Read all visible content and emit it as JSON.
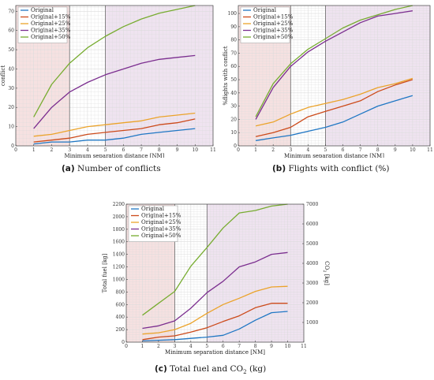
{
  "colors": {
    "Original": "#1f77c4",
    "Original+15%": "#cc4a1a",
    "Original+25%": "#eba32a",
    "Original+35%": "#7b2e8f",
    "Original+50%": "#77ac30",
    "red_zone": "#f6e1e1",
    "white_zone": "#ffffff",
    "purple_zone": "#efe3f0",
    "grid": "#dcdcdc",
    "frame": "#444444"
  },
  "captions": {
    "a_label": "(a)",
    "a_text": "Number of conflicts",
    "b_label": "(b)",
    "b_text": "Flights with conflict (%)",
    "c_label": "(c)",
    "c_text_pre": "Total fuel and CO",
    "c_text_sub": "2",
    "c_text_post": " (kg)"
  },
  "chart_data": [
    {
      "id": "a",
      "type": "line",
      "xlabel": "Minimum separation distance [NM]",
      "ylabel": "conflict",
      "xlim": [
        0,
        11
      ],
      "ylim": [
        0,
        73
      ],
      "xticks": [
        0,
        1,
        2,
        3,
        4,
        5,
        6,
        7,
        8,
        9,
        10,
        11
      ],
      "yticks": [
        0,
        10,
        20,
        30,
        40,
        50,
        60,
        70
      ],
      "bands": [
        [
          0,
          3,
          "red_zone"
        ],
        [
          3,
          5,
          "white_zone"
        ],
        [
          5,
          11,
          "purple_zone"
        ]
      ],
      "legend": "top-left",
      "x": [
        1,
        2,
        3,
        4,
        5,
        6,
        7,
        8,
        9,
        10
      ],
      "series": [
        {
          "name": "Original",
          "values": [
            1,
            2,
            2,
            3,
            3,
            4,
            6,
            7,
            8,
            9
          ]
        },
        {
          "name": "Original+15%",
          "values": [
            2,
            3,
            4,
            6,
            7,
            8,
            9,
            11,
            12,
            14
          ]
        },
        {
          "name": "Original+25%",
          "values": [
            5,
            6,
            8,
            10,
            11,
            12,
            13,
            15,
            16,
            17
          ]
        },
        {
          "name": "Original+35%",
          "values": [
            9,
            20,
            28,
            33,
            37,
            40,
            43,
            45,
            46,
            47
          ]
        },
        {
          "name": "Original+50%",
          "values": [
            15,
            32,
            43,
            51,
            57,
            62,
            66,
            69,
            71,
            73
          ]
        }
      ]
    },
    {
      "id": "b",
      "type": "line",
      "xlabel": "Minimum separation distance [NM]",
      "ylabel": "%flights with conflict",
      "xlim": [
        0,
        11
      ],
      "ylim": [
        0,
        106
      ],
      "xticks": [
        0,
        1,
        2,
        3,
        4,
        5,
        6,
        7,
        8,
        9,
        10,
        11
      ],
      "yticks": [
        0,
        10,
        20,
        30,
        40,
        50,
        60,
        70,
        80,
        90,
        100
      ],
      "bands": [
        [
          0,
          3,
          "red_zone"
        ],
        [
          3,
          5,
          "white_zone"
        ],
        [
          5,
          11,
          "purple_zone"
        ]
      ],
      "legend": "top-left",
      "x": [
        1,
        2,
        3,
        4,
        5,
        6,
        7,
        8,
        9,
        10
      ],
      "series": [
        {
          "name": "Original",
          "values": [
            4,
            6,
            8,
            11,
            14,
            18,
            24,
            30,
            34,
            38
          ]
        },
        {
          "name": "Original+15%",
          "values": [
            7,
            10,
            14,
            22,
            26,
            30,
            34,
            41,
            46,
            50
          ]
        },
        {
          "name": "Original+25%",
          "values": [
            15,
            18,
            24,
            29,
            32,
            35,
            39,
            44,
            47,
            51
          ]
        },
        {
          "name": "Original+35%",
          "values": [
            20,
            44,
            60,
            71,
            79,
            86,
            93,
            98,
            100,
            102
          ]
        },
        {
          "name": "Original+50%",
          "values": [
            22,
            47,
            62,
            73,
            81,
            89,
            95,
            99,
            103,
            106
          ]
        }
      ]
    },
    {
      "id": "c",
      "type": "line",
      "xlabel": "Minimum separation distance [NM]",
      "ylabel": "Total fuel [kg]",
      "y2label_pre": "CO",
      "y2label_sub": "2",
      "y2label_post": " [kg]",
      "xlim": [
        0,
        11
      ],
      "ylim": [
        0,
        2200
      ],
      "y2lim": [
        0,
        7000
      ],
      "xticks": [
        0,
        1,
        2,
        3,
        4,
        5,
        6,
        7,
        8,
        9,
        10,
        11
      ],
      "yticks": [
        0,
        200,
        400,
        600,
        800,
        1000,
        1200,
        1400,
        1600,
        1800,
        2000,
        2200
      ],
      "y2ticks": [
        1000,
        2000,
        3000,
        4000,
        5000,
        6000,
        7000
      ],
      "bands": [
        [
          0,
          3,
          "red_zone"
        ],
        [
          3,
          5,
          "white_zone"
        ],
        [
          5,
          11,
          "purple_zone"
        ]
      ],
      "legend": "top-left",
      "x": [
        1,
        2,
        3,
        4,
        5,
        6,
        7,
        8,
        9,
        10
      ],
      "series": [
        {
          "name": "Original",
          "values": [
            20,
            30,
            40,
            60,
            80,
            110,
            210,
            350,
            470,
            490
          ]
        },
        {
          "name": "Original+15%",
          "values": [
            40,
            80,
            100,
            160,
            230,
            330,
            420,
            550,
            620,
            620
          ]
        },
        {
          "name": "Original+25%",
          "values": [
            130,
            150,
            200,
            300,
            460,
            600,
            700,
            810,
            880,
            890
          ]
        },
        {
          "name": "Original+35%",
          "values": [
            220,
            260,
            340,
            540,
            790,
            970,
            1200,
            1280,
            1400,
            1430
          ]
        },
        {
          "name": "Original+50%",
          "values": [
            430,
            620,
            810,
            1210,
            1510,
            1820,
            2060,
            2100,
            2170,
            2200
          ]
        }
      ]
    }
  ]
}
